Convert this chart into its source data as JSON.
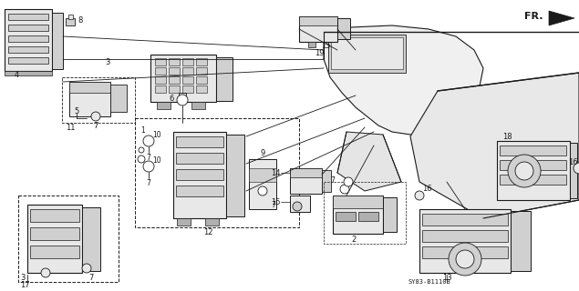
{
  "bg_color": "#ffffff",
  "diagram_code": "SY83-B1110B",
  "fr_label": "FR.",
  "line_color": "#1a1a1a",
  "text_color": "#1a1a1a",
  "fill_light": "#e8e8e8",
  "fill_mid": "#d0d0d0",
  "fill_dark": "#b0b0b0"
}
